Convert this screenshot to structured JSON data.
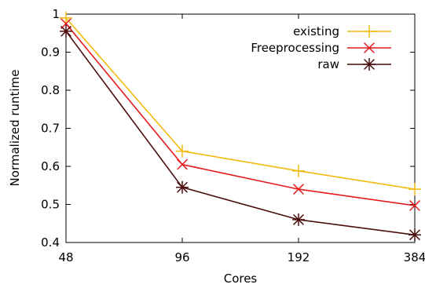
{
  "chart_data": {
    "type": "line",
    "title": "",
    "xlabel": "Cores",
    "ylabel": "Normalized runtime",
    "x": [
      48,
      96,
      192,
      384
    ],
    "x_scale": "log2",
    "xticks": [
      "48",
      "96",
      "192",
      "384"
    ],
    "ylim": [
      0.4,
      1.0
    ],
    "yticks": [
      "0.4",
      "0.5",
      "0.6",
      "0.7",
      "0.8",
      "0.9",
      "1"
    ],
    "grid": false,
    "legend_position": "top-right",
    "series": [
      {
        "name": "existing",
        "values": [
          0.99,
          0.64,
          0.588,
          0.54
        ],
        "color": "#f2b90e",
        "marker": "plus"
      },
      {
        "name": "Freeprocessing",
        "values": [
          0.975,
          0.605,
          0.54,
          0.497
        ],
        "color": "#e41a1c",
        "marker": "cross"
      },
      {
        "name": "raw",
        "values": [
          0.955,
          0.545,
          0.46,
          0.42
        ],
        "color": "#4a0b0b",
        "marker": "star"
      }
    ]
  }
}
